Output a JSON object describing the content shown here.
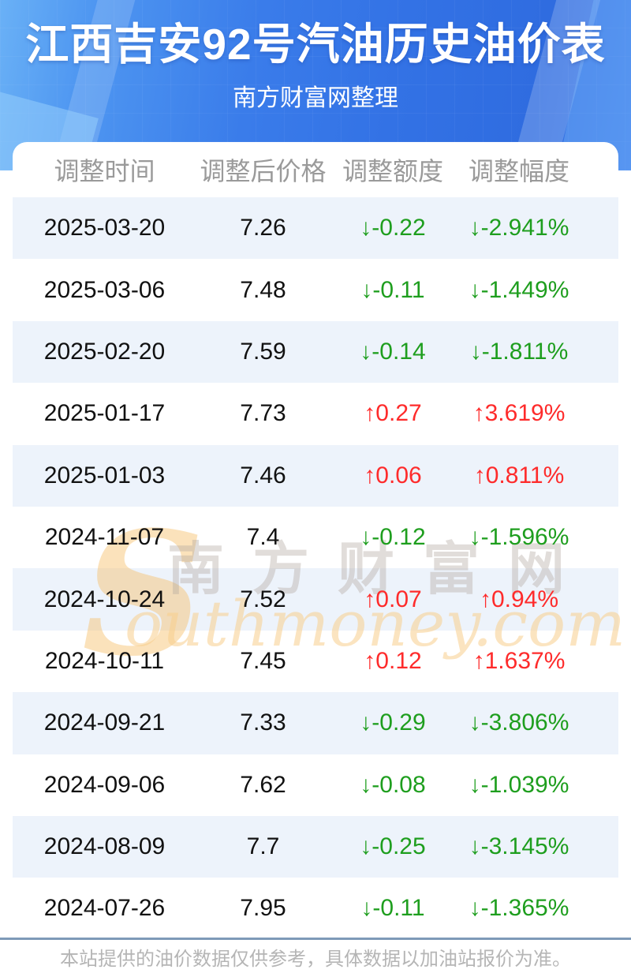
{
  "header": {
    "title": "江西吉安92号汽油历史油价表",
    "subtitle": "南方财富网整理"
  },
  "table": {
    "columns": [
      "调整时间",
      "调整后价格",
      "调整额度",
      "调整幅度"
    ],
    "rows": [
      {
        "date": "2025-03-20",
        "price": "7.26",
        "change": "↓-0.22",
        "percent": "↓-2.941%",
        "direction": "down"
      },
      {
        "date": "2025-03-06",
        "price": "7.48",
        "change": "↓-0.11",
        "percent": "↓-1.449%",
        "direction": "down"
      },
      {
        "date": "2025-02-20",
        "price": "7.59",
        "change": "↓-0.14",
        "percent": "↓-1.811%",
        "direction": "down"
      },
      {
        "date": "2025-01-17",
        "price": "7.73",
        "change": "↑0.27",
        "percent": "↑3.619%",
        "direction": "up"
      },
      {
        "date": "2025-01-03",
        "price": "7.46",
        "change": "↑0.06",
        "percent": "↑0.811%",
        "direction": "up"
      },
      {
        "date": "2024-11-07",
        "price": "7.4",
        "change": "↓-0.12",
        "percent": "↓-1.596%",
        "direction": "down"
      },
      {
        "date": "2024-10-24",
        "price": "7.52",
        "change": "↑0.07",
        "percent": "↑0.94%",
        "direction": "up"
      },
      {
        "date": "2024-10-11",
        "price": "7.45",
        "change": "↑0.12",
        "percent": "↑1.637%",
        "direction": "up"
      },
      {
        "date": "2024-09-21",
        "price": "7.33",
        "change": "↓-0.29",
        "percent": "↓-3.806%",
        "direction": "down"
      },
      {
        "date": "2024-09-06",
        "price": "7.62",
        "change": "↓-0.08",
        "percent": "↓-1.039%",
        "direction": "down"
      },
      {
        "date": "2024-08-09",
        "price": "7.7",
        "change": "↓-0.25",
        "percent": "↓-3.145%",
        "direction": "down"
      },
      {
        "date": "2024-07-26",
        "price": "7.95",
        "change": "↓-0.11",
        "percent": "↓-1.365%",
        "direction": "down"
      }
    ]
  },
  "watermark": {
    "swoosh": "S",
    "cn": "南方财富网",
    "en": "outhmoney.com"
  },
  "footer": {
    "note": "本站提供的油价数据仅供参考，具体数据以加油站报价为准。"
  },
  "colors": {
    "header_blue": "#3B7BEA",
    "row_alt": "#EDF3FB",
    "up_red": "#FE2B2B",
    "down_green": "#1E9E1E",
    "divider": "#7E9AB8"
  },
  "chart_data": {
    "type": "table",
    "title": "江西吉安92号汽油历史油价表",
    "subtitle": "南方财富网整理",
    "columns": [
      "调整时间",
      "调整后价格",
      "调整额度",
      "调整幅度"
    ],
    "rows": [
      [
        "2025-03-20",
        7.26,
        -0.22,
        "-2.941%"
      ],
      [
        "2025-03-06",
        7.48,
        -0.11,
        "-1.449%"
      ],
      [
        "2025-02-20",
        7.59,
        -0.14,
        "-1.811%"
      ],
      [
        "2025-01-17",
        7.73,
        0.27,
        "3.619%"
      ],
      [
        "2025-01-03",
        7.46,
        0.06,
        "0.811%"
      ],
      [
        "2024-11-07",
        7.4,
        -0.12,
        "-1.596%"
      ],
      [
        "2024-10-24",
        7.52,
        0.07,
        "0.94%"
      ],
      [
        "2024-10-11",
        7.45,
        0.12,
        "1.637%"
      ],
      [
        "2024-09-21",
        7.33,
        -0.29,
        "-3.806%"
      ],
      [
        "2024-09-06",
        7.62,
        -0.08,
        "-1.039%"
      ],
      [
        "2024-08-09",
        7.7,
        -0.25,
        "-3.145%"
      ],
      [
        "2024-07-26",
        7.95,
        -0.11,
        "-1.365%"
      ]
    ],
    "legend": "red = price increase (↑), green = price decrease (↓)"
  }
}
